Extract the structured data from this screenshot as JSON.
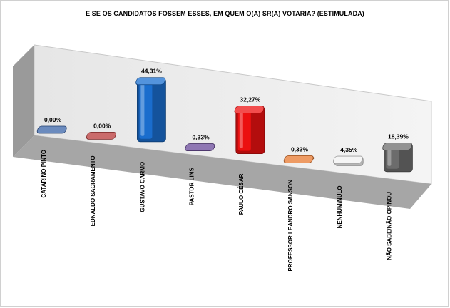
{
  "chart_data": {
    "type": "bar",
    "title": "E SE OS CANDIDATOS FOSSEM ESSES, EM QUEM O(A) SR(A) VOTARIA? (ESTIMULADA)",
    "categories": [
      "CATARINO PINTO",
      "EDNALDO SACRAMENTO",
      "GUSTAVO CARMO",
      "PASTOR LINS",
      "PAULO CÉSAR",
      "PROFESSOR LEANDRO SANSON",
      "NENHUM/NULO",
      "NÃO SABE/NÃO OPINOU"
    ],
    "values": [
      0.0,
      0.0,
      44.31,
      0.33,
      32.27,
      0.33,
      4.35,
      18.39
    ],
    "data_labels": [
      "0,00%",
      "0,00%",
      "44,31%",
      "0,33%",
      "32,27%",
      "0,33%",
      "4,35%",
      "18,39%"
    ],
    "colors": [
      "#3a64a8",
      "#b83a3a",
      "#1a6fd0",
      "#6a4a9a",
      "#ee1111",
      "#e87a30",
      "#f2f2f2",
      "#6e6e6e"
    ],
    "ylim": [
      0,
      50
    ],
    "grid": false,
    "legend": "none"
  }
}
